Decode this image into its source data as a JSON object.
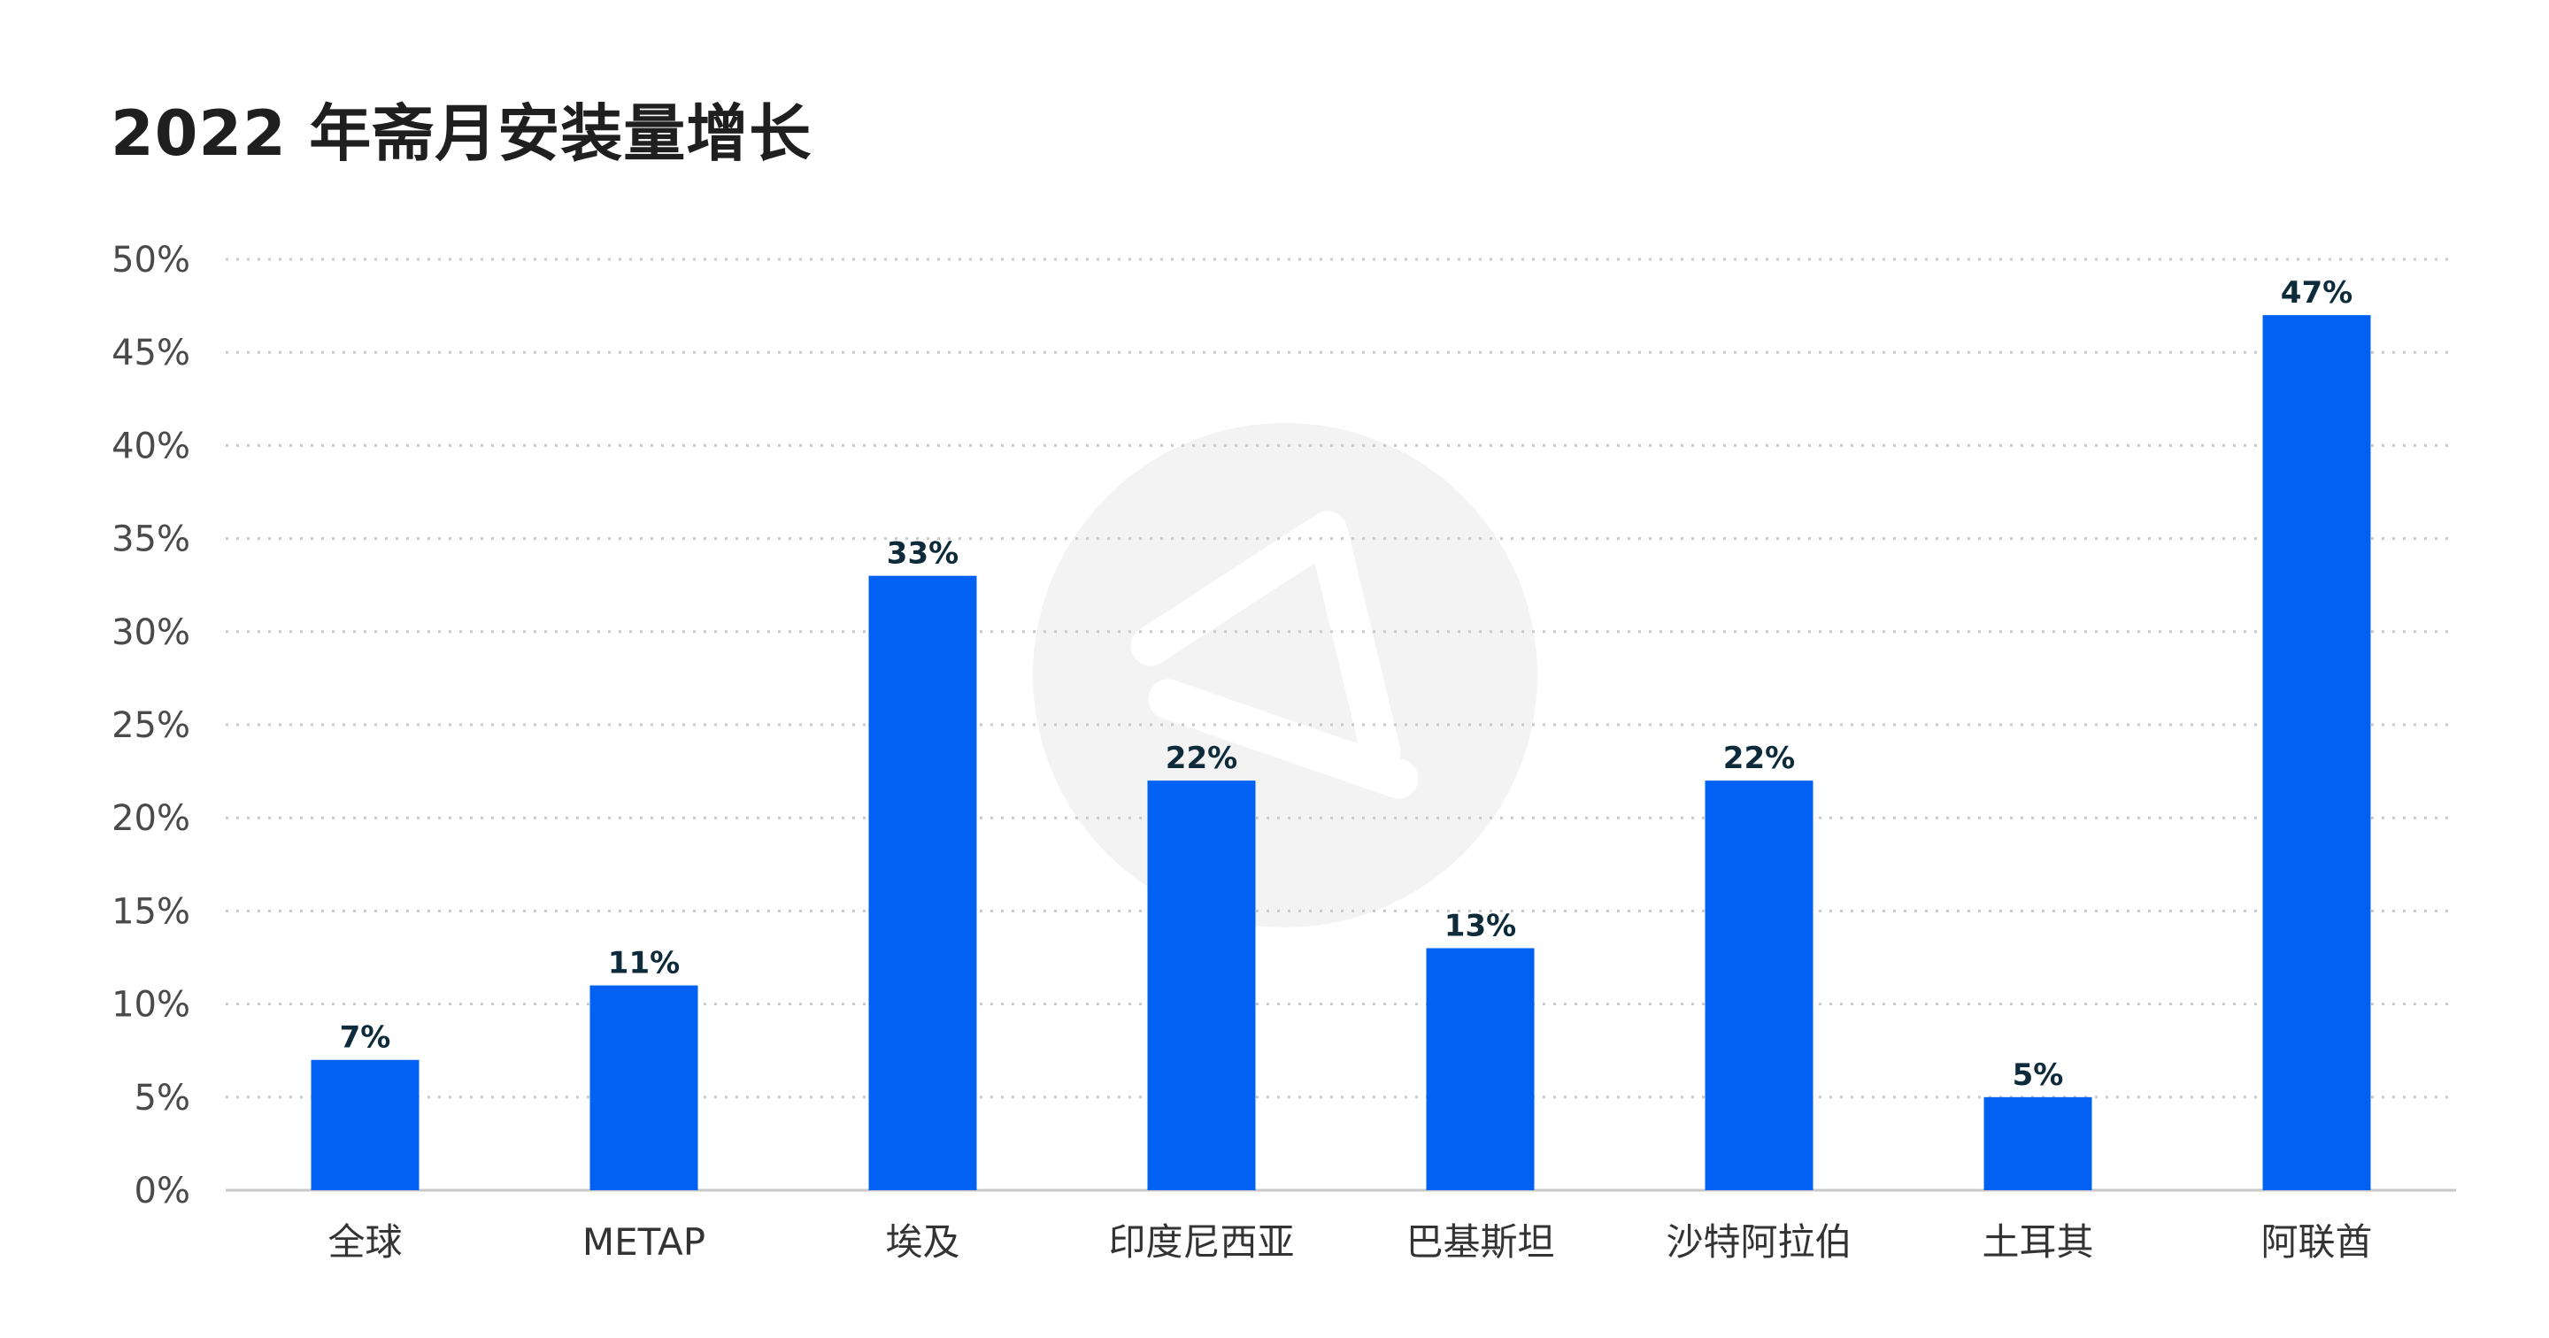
{
  "chart_data": {
    "type": "bar",
    "title": "2022 年斋月安装量增长",
    "categories": [
      "全球",
      "METAP",
      "埃及",
      "印度尼西亚",
      "巴基斯坦",
      "沙特阿拉伯",
      "土耳其",
      "阿联酋"
    ],
    "values": [
      7,
      11,
      33,
      22,
      13,
      22,
      5,
      47
    ],
    "data_labels": [
      "7%",
      "11%",
      "33%",
      "22%",
      "13%",
      "22%",
      "5%",
      "47%"
    ],
    "yticks": [
      "0%",
      "5%",
      "10%",
      "15%",
      "20%",
      "25%",
      "30%",
      "35%",
      "40%",
      "45%",
      "50%"
    ],
    "ylim": [
      0,
      50
    ],
    "ytick_step": 5,
    "grid": true,
    "bar_color": "#0061F2",
    "grid_color": "#c9c9c9",
    "xlabel": "",
    "ylabel": ""
  }
}
